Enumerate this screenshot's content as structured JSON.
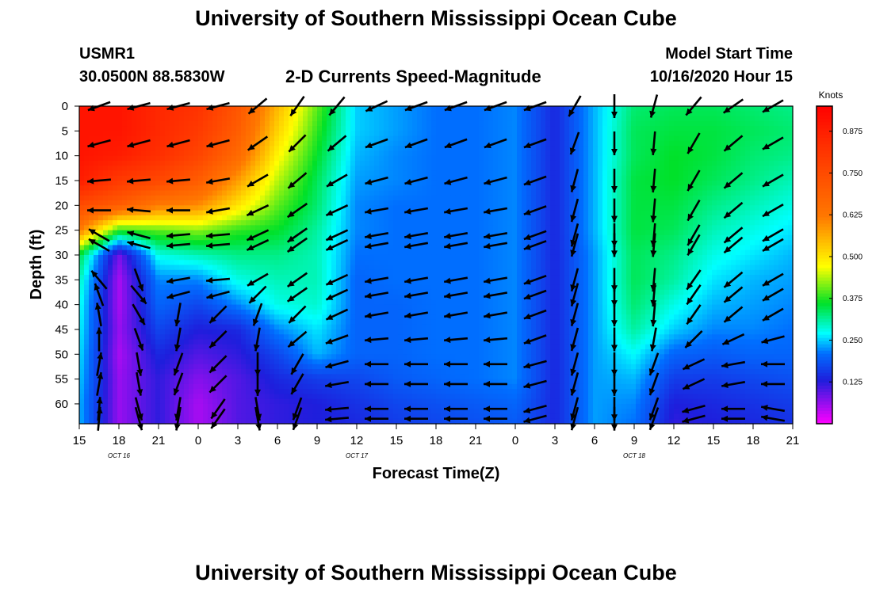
{
  "title": "University of Southern Mississippi Ocean Cube",
  "footer_title": "University of Southern Mississippi Ocean Cube",
  "station": {
    "name": "USMR1",
    "coords": "30.0500N 88.5830W"
  },
  "model_start": {
    "label": "Model Start Time",
    "value": "10/16/2020 Hour 15"
  },
  "chart_data": {
    "type": "heatmap",
    "title": "2-D Currents Speed-Magnitude",
    "xlabel": "Forecast Time(Z)",
    "ylabel": "Depth (ft)",
    "colorbar_label": "Knots",
    "x_ticks": [
      "15",
      "18",
      "21",
      "0",
      "3",
      "6",
      "9",
      "12",
      "15",
      "18",
      "21",
      "0",
      "3",
      "6",
      "9",
      "12",
      "15",
      "18",
      "21"
    ],
    "date_labels": [
      {
        "label": "OCT 16",
        "tick_index": 1
      },
      {
        "label": "OCT 17",
        "tick_index": 7
      },
      {
        "label": "OCT 18",
        "tick_index": 14
      }
    ],
    "y_ticks": [
      0,
      5,
      10,
      15,
      20,
      25,
      30,
      35,
      40,
      45,
      50,
      55,
      60
    ],
    "ylim": [
      0,
      64
    ],
    "xlim_hours": [
      0,
      54
    ],
    "colorbar_ticks": [
      "0.875",
      "0.750",
      "0.625",
      "0.500",
      "0.375",
      "0.250",
      "0.125"
    ],
    "colorbar_range": [
      0,
      0.95
    ],
    "speed_samples": {
      "hours": [
        0,
        3,
        6,
        9,
        12,
        15,
        18,
        21,
        24,
        27,
        30,
        33,
        36,
        39,
        42,
        45,
        48,
        51,
        54
      ],
      "depths": [
        0,
        5,
        10,
        15,
        20,
        25,
        30,
        35,
        40,
        45,
        50,
        55,
        60,
        64
      ],
      "knots": [
        [
          0.9,
          0.9,
          0.85,
          0.82,
          0.72,
          0.55,
          0.4,
          0.25,
          0.23,
          0.21,
          0.21,
          0.22,
          0.14,
          0.24,
          0.33,
          0.34,
          0.34,
          0.33,
          0.32
        ],
        [
          0.9,
          0.9,
          0.85,
          0.8,
          0.7,
          0.52,
          0.38,
          0.25,
          0.23,
          0.21,
          0.21,
          0.22,
          0.14,
          0.24,
          0.34,
          0.35,
          0.35,
          0.34,
          0.33
        ],
        [
          0.9,
          0.88,
          0.83,
          0.77,
          0.66,
          0.48,
          0.36,
          0.24,
          0.22,
          0.21,
          0.21,
          0.22,
          0.14,
          0.24,
          0.34,
          0.36,
          0.35,
          0.33,
          0.32
        ],
        [
          0.88,
          0.8,
          0.76,
          0.7,
          0.58,
          0.44,
          0.34,
          0.23,
          0.22,
          0.21,
          0.21,
          0.22,
          0.14,
          0.24,
          0.35,
          0.36,
          0.34,
          0.32,
          0.3
        ],
        [
          0.75,
          0.7,
          0.62,
          0.6,
          0.5,
          0.4,
          0.33,
          0.22,
          0.21,
          0.21,
          0.21,
          0.22,
          0.14,
          0.24,
          0.35,
          0.35,
          0.32,
          0.3,
          0.28
        ],
        [
          0.62,
          0.38,
          0.4,
          0.42,
          0.38,
          0.36,
          0.31,
          0.22,
          0.21,
          0.21,
          0.21,
          0.22,
          0.14,
          0.24,
          0.35,
          0.34,
          0.3,
          0.28,
          0.26
        ],
        [
          0.35,
          0.08,
          0.28,
          0.3,
          0.32,
          0.32,
          0.3,
          0.21,
          0.21,
          0.21,
          0.21,
          0.22,
          0.14,
          0.23,
          0.34,
          0.32,
          0.28,
          0.26,
          0.24
        ],
        [
          0.3,
          0.05,
          0.22,
          0.22,
          0.28,
          0.3,
          0.3,
          0.2,
          0.21,
          0.21,
          0.21,
          0.22,
          0.14,
          0.23,
          0.34,
          0.31,
          0.26,
          0.24,
          0.23
        ],
        [
          0.28,
          0.05,
          0.2,
          0.17,
          0.22,
          0.28,
          0.29,
          0.2,
          0.2,
          0.21,
          0.21,
          0.22,
          0.14,
          0.23,
          0.33,
          0.28,
          0.24,
          0.23,
          0.22
        ],
        [
          0.27,
          0.06,
          0.17,
          0.13,
          0.14,
          0.22,
          0.26,
          0.2,
          0.2,
          0.21,
          0.21,
          0.22,
          0.14,
          0.23,
          0.31,
          0.25,
          0.22,
          0.22,
          0.21
        ],
        [
          0.26,
          0.05,
          0.14,
          0.1,
          0.12,
          0.17,
          0.24,
          0.2,
          0.2,
          0.21,
          0.21,
          0.22,
          0.14,
          0.23,
          0.27,
          0.2,
          0.19,
          0.2,
          0.2
        ],
        [
          0.25,
          0.06,
          0.12,
          0.07,
          0.1,
          0.14,
          0.16,
          0.17,
          0.19,
          0.2,
          0.21,
          0.22,
          0.14,
          0.23,
          0.24,
          0.16,
          0.16,
          0.17,
          0.18
        ],
        [
          0.24,
          0.06,
          0.12,
          0.05,
          0.1,
          0.12,
          0.13,
          0.15,
          0.17,
          0.18,
          0.19,
          0.2,
          0.14,
          0.23,
          0.22,
          0.13,
          0.14,
          0.15,
          0.16
        ],
        [
          0.24,
          0.06,
          0.12,
          0.05,
          0.1,
          0.12,
          0.13,
          0.14,
          0.16,
          0.17,
          0.18,
          0.19,
          0.14,
          0.23,
          0.21,
          0.12,
          0.13,
          0.14,
          0.15
        ]
      ]
    },
    "vector_field": {
      "hours": [
        1.5,
        4.5,
        7.5,
        10.5,
        13.5,
        16.5,
        19.5,
        22.5,
        25.5,
        28.5,
        31.5,
        34.5,
        37.5,
        40.5,
        43.5,
        46.5,
        49.5,
        52.5
      ],
      "depths": [
        0,
        7.5,
        15,
        21,
        26,
        28,
        35,
        38,
        42,
        47,
        52,
        56,
        61,
        63
      ],
      "direction_deg": [
        [
          250,
          255,
          255,
          255,
          230,
          215,
          220,
          245,
          250,
          250,
          250,
          250,
          210,
          180,
          195,
          220,
          235,
          240
        ],
        [
          255,
          255,
          255,
          255,
          235,
          225,
          230,
          250,
          250,
          250,
          250,
          250,
          200,
          180,
          185,
          210,
          230,
          240
        ],
        [
          265,
          265,
          265,
          260,
          240,
          230,
          240,
          255,
          255,
          255,
          255,
          250,
          195,
          180,
          185,
          210,
          230,
          240
        ],
        [
          270,
          275,
          270,
          260,
          245,
          235,
          245,
          260,
          260,
          260,
          260,
          250,
          195,
          180,
          185,
          210,
          230,
          240
        ],
        [
          300,
          285,
          265,
          265,
          245,
          235,
          245,
          260,
          260,
          260,
          260,
          250,
          195,
          180,
          185,
          210,
          230,
          240
        ],
        [
          300,
          285,
          265,
          265,
          245,
          235,
          245,
          260,
          260,
          260,
          260,
          250,
          195,
          180,
          185,
          210,
          230,
          240
        ],
        [
          320,
          160,
          260,
          265,
          240,
          235,
          245,
          260,
          260,
          260,
          260,
          250,
          195,
          180,
          185,
          215,
          230,
          240
        ],
        [
          340,
          140,
          255,
          255,
          225,
          235,
          245,
          260,
          260,
          260,
          260,
          250,
          195,
          180,
          185,
          215,
          230,
          240
        ],
        [
          350,
          150,
          190,
          225,
          200,
          225,
          245,
          260,
          260,
          260,
          260,
          250,
          195,
          180,
          185,
          215,
          230,
          240
        ],
        [
          0,
          160,
          190,
          225,
          190,
          230,
          250,
          265,
          265,
          265,
          265,
          250,
          195,
          180,
          190,
          225,
          245,
          255
        ],
        [
          10,
          170,
          200,
          225,
          180,
          210,
          255,
          270,
          270,
          270,
          270,
          255,
          195,
          180,
          200,
          245,
          260,
          270
        ],
        [
          10,
          170,
          200,
          225,
          180,
          210,
          260,
          270,
          270,
          270,
          270,
          255,
          195,
          180,
          200,
          245,
          260,
          270
        ],
        [
          5,
          165,
          190,
          215,
          170,
          200,
          265,
          270,
          270,
          270,
          270,
          255,
          195,
          180,
          200,
          255,
          270,
          280
        ],
        [
          5,
          165,
          190,
          215,
          170,
          200,
          265,
          270,
          270,
          270,
          270,
          255,
          195,
          180,
          200,
          255,
          270,
          280
        ]
      ]
    }
  }
}
